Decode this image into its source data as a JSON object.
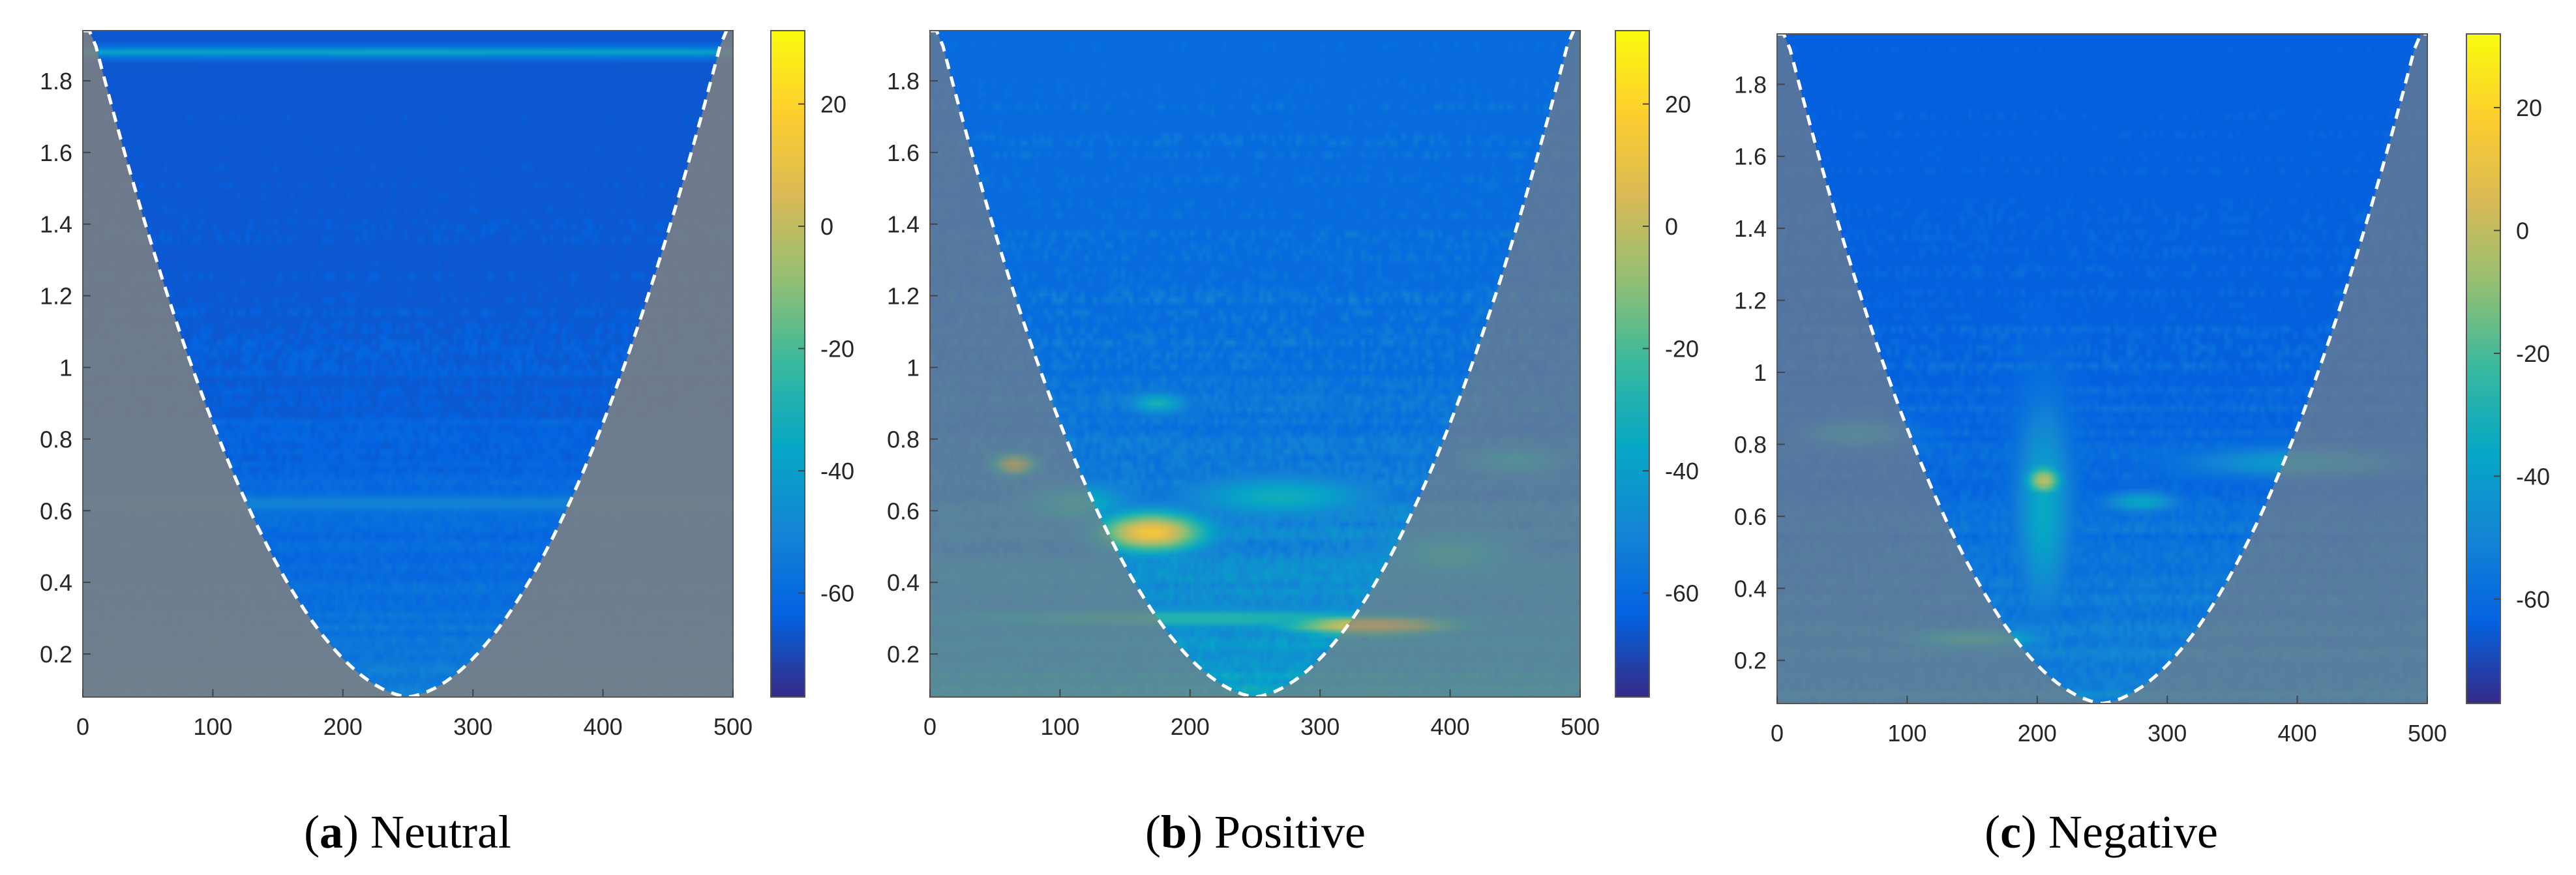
{
  "chart_data": [
    {
      "type": "heatmap",
      "title": "",
      "caption_letter": "a",
      "caption_text": "Neutral",
      "xlabel": "",
      "ylabel": "",
      "xlim": [
        0,
        500
      ],
      "ylim": [
        0.08,
        1.94
      ],
      "x_ticks": [
        0,
        100,
        200,
        300,
        400,
        500
      ],
      "y_ticks": [
        0.2,
        0.4,
        0.6,
        0.8,
        1,
        1.2,
        1.4,
        1.6,
        1.8
      ],
      "colorbar": {
        "range": [
          -77,
          32
        ],
        "ticks": [
          20,
          0,
          -20,
          -40,
          -60
        ]
      },
      "cone_of_influence": "dashed white curve; region below is shaded grey",
      "hotspots": [
        {
          "x": 250,
          "y": 0.62,
          "x_spread": 400,
          "y_spread": 0.02,
          "value": -50
        },
        {
          "x": 250,
          "y": 1.88,
          "x_spread": 500,
          "y_spread": 0.01,
          "value": -35
        }
      ],
      "background_level": -66,
      "low_freq_lift": 0.15,
      "noise": 6
    },
    {
      "type": "heatmap",
      "title": "",
      "caption_letter": "b",
      "caption_text": "Positive",
      "xlabel": "",
      "ylabel": "",
      "xlim": [
        0,
        500
      ],
      "ylim": [
        0.08,
        1.94
      ],
      "x_ticks": [
        0,
        100,
        200,
        300,
        400,
        500
      ],
      "y_ticks": [
        0.2,
        0.4,
        0.6,
        0.8,
        1,
        1.2,
        1.4,
        1.6,
        1.8
      ],
      "colorbar": {
        "range": [
          -77,
          32
        ],
        "ticks": [
          20,
          0,
          -20,
          -40,
          -60
        ]
      },
      "cone_of_influence": "dashed white curve; region below is shaded grey",
      "hotspots": [
        {
          "x": 170,
          "y": 0.54,
          "x_spread": 30,
          "y_spread": 0.04,
          "value": 15
        },
        {
          "x": 340,
          "y": 0.28,
          "x_spread": 50,
          "y_spread": 0.02,
          "value": 12
        },
        {
          "x": 200,
          "y": 0.3,
          "x_spread": 180,
          "y_spread": 0.02,
          "value": -25
        },
        {
          "x": 65,
          "y": 0.73,
          "x_spread": 12,
          "y_spread": 0.02,
          "value": 10
        },
        {
          "x": 400,
          "y": 0.48,
          "x_spread": 40,
          "y_spread": 0.05,
          "value": -30
        },
        {
          "x": 110,
          "y": 0.62,
          "x_spread": 30,
          "y_spread": 0.04,
          "value": -30
        },
        {
          "x": 270,
          "y": 0.64,
          "x_spread": 50,
          "y_spread": 0.04,
          "value": -32
        },
        {
          "x": 175,
          "y": 0.9,
          "x_spread": 15,
          "y_spread": 0.02,
          "value": -30
        },
        {
          "x": 450,
          "y": 0.74,
          "x_spread": 30,
          "y_spread": 0.03,
          "value": -35
        }
      ],
      "background_level": -60,
      "low_freq_lift": 0.35,
      "noise": 10
    },
    {
      "type": "heatmap",
      "title": "",
      "caption_letter": "c",
      "caption_text": "Negative",
      "xlabel": "",
      "ylabel": "",
      "xlim": [
        0,
        500
      ],
      "ylim": [
        0.08,
        1.94
      ],
      "x_ticks": [
        0,
        100,
        200,
        300,
        400,
        500
      ],
      "y_ticks": [
        0.2,
        0.4,
        0.6,
        0.8,
        1,
        1.2,
        1.4,
        1.6,
        1.8
      ],
      "colorbar": {
        "range": [
          -77,
          32
        ],
        "ticks": [
          20,
          0,
          -20,
          -40,
          -60
        ]
      },
      "cone_of_influence": "dashed white curve; region below is shaded grey",
      "hotspots": [
        {
          "x": 205,
          "y": 0.7,
          "x_spread": 10,
          "y_spread": 0.03,
          "value": 0
        },
        {
          "x": 205,
          "y": 0.62,
          "x_spread": 15,
          "y_spread": 0.2,
          "value": -35
        },
        {
          "x": 150,
          "y": 0.26,
          "x_spread": 40,
          "y_spread": 0.02,
          "value": -25
        },
        {
          "x": 280,
          "y": 0.64,
          "x_spread": 20,
          "y_spread": 0.02,
          "value": -35
        },
        {
          "x": 400,
          "y": 0.75,
          "x_spread": 60,
          "y_spread": 0.03,
          "value": -40
        },
        {
          "x": 60,
          "y": 0.83,
          "x_spread": 30,
          "y_spread": 0.03,
          "value": -42
        }
      ],
      "background_level": -64,
      "low_freq_lift": 0.2,
      "noise": 8
    }
  ]
}
